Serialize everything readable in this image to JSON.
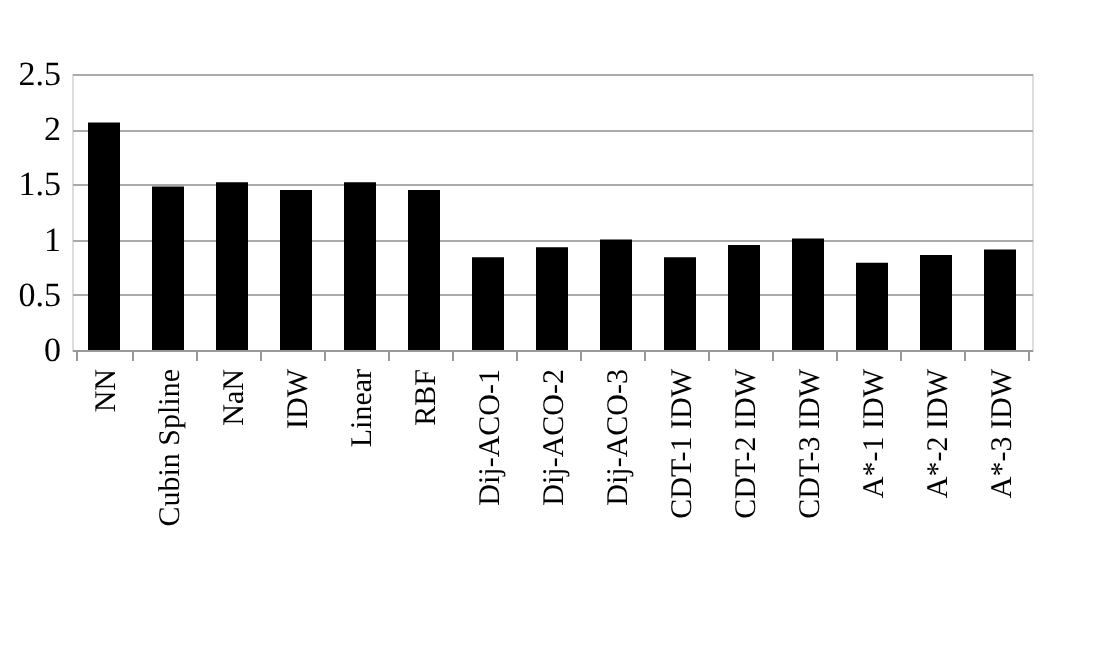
{
  "chart_data": {
    "type": "bar",
    "categories": [
      "NN",
      "Cubin Spline",
      "NaN",
      "IDW",
      "Linear",
      "RBF",
      "Dij-ACO-1",
      "Dij-ACO-2",
      "Dij-ACO-3",
      "CDT-1 IDW",
      "CDT-2 IDW",
      "CDT-3 IDW",
      "A*-1 IDW",
      "A*-2 IDW",
      "A*-3 IDW"
    ],
    "values": [
      2.06,
      1.48,
      1.52,
      1.45,
      1.52,
      1.45,
      0.84,
      0.93,
      1.0,
      0.84,
      0.95,
      1.01,
      0.79,
      0.86,
      0.91
    ],
    "color": "#000000",
    "ylim": [
      0,
      2.5
    ],
    "yticks": [
      0,
      0.5,
      1,
      1.5,
      2,
      2.5
    ],
    "grid": "y"
  }
}
